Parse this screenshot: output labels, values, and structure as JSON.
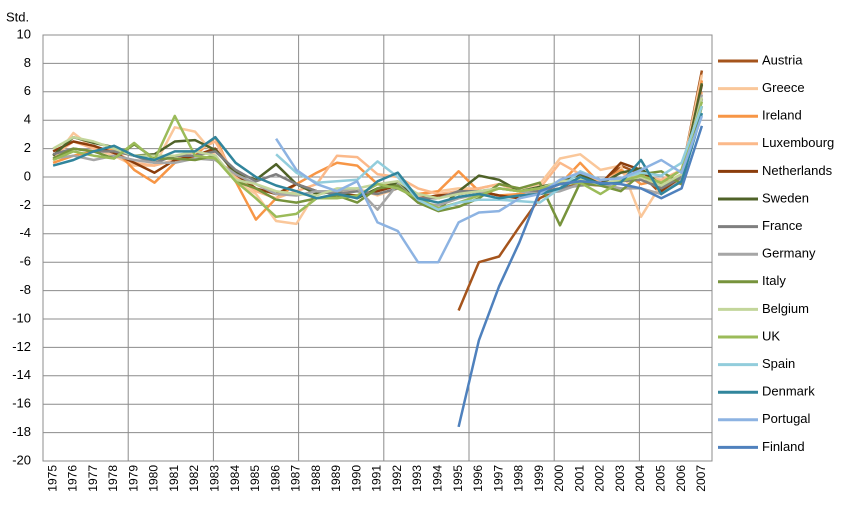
{
  "chart_data": {
    "type": "line",
    "y_label": "Std.",
    "categories": [
      "1975",
      "1976",
      "1977",
      "1978",
      "1979",
      "1980",
      "1981",
      "1982",
      "1983",
      "1984",
      "1985",
      "1986",
      "1987",
      "1988",
      "1989",
      "1990",
      "1991",
      "1992",
      "1993",
      "1994",
      "1995",
      "1996",
      "1997",
      "1998",
      "1999",
      "2000",
      "2001",
      "2002",
      "2003",
      "2004",
      "2005",
      "2006",
      "2007"
    ],
    "ylim": [
      -20,
      10
    ],
    "yticks": [
      -20,
      -18,
      -16,
      -14,
      -12,
      -10,
      -8,
      -6,
      -4,
      -2,
      0,
      2,
      4,
      6,
      8,
      10
    ],
    "grid": true,
    "legend": "right",
    "series": [
      {
        "name": "Austria",
        "color": "#a5541c",
        "values": [
          null,
          null,
          null,
          null,
          null,
          null,
          null,
          null,
          null,
          null,
          null,
          null,
          null,
          null,
          null,
          null,
          null,
          null,
          null,
          null,
          -9.4,
          -6,
          -5.6,
          -3.5,
          -1.5,
          -0.8,
          -0.5,
          -0.6,
          0.8,
          0.2,
          -1.2,
          0.2,
          7.5
        ]
      },
      {
        "name": "Greece",
        "color": "#fac79a",
        "values": [
          1.2,
          3.1,
          2.0,
          1.5,
          0.8,
          0.8,
          3.5,
          3.2,
          1.5,
          -0.3,
          -1.2,
          -3.1,
          -3.3,
          -1.0,
          -1.2,
          -0.8,
          -1.3,
          -0.8,
          -1.3,
          -1.0,
          -0.8,
          -0.8,
          -0.5,
          -0.8,
          -0.5,
          1.3,
          1.6,
          0.5,
          0.8,
          -2.8,
          -0.5,
          0.2,
          7.2
        ]
      },
      {
        "name": "Ireland",
        "color": "#f79646",
        "values": [
          1.0,
          1.5,
          1.8,
          2.0,
          0.5,
          -0.4,
          1.0,
          1.5,
          2.8,
          -0.3,
          -3.0,
          -1.5,
          -0.5,
          0.3,
          1.0,
          0.8,
          -0.5,
          -0.5,
          -1.2,
          -1.0,
          0.4,
          -1.0,
          -1.3,
          -1.2,
          -0.8,
          -0.5,
          1.0,
          -0.5,
          0.5,
          -0.5,
          -0.2,
          -0.5,
          6.8
        ]
      },
      {
        "name": "Luxembourg",
        "color": "#fbb98a",
        "values": [
          1.5,
          2.5,
          2.0,
          1.8,
          1.0,
          0.8,
          1.2,
          1.8,
          2.5,
          0,
          -1.0,
          -1.5,
          -1.0,
          -0.5,
          1.5,
          1.4,
          0.2,
          0,
          -0.8,
          -1.2,
          -1.0,
          -0.8,
          -0.5,
          -1.0,
          -0.8,
          1.0,
          0.2,
          -0.3,
          0.3,
          0,
          -0.2,
          0.5,
          6.0
        ]
      },
      {
        "name": "Netherlands",
        "color": "#8b3d0c",
        "values": [
          1.8,
          2.5,
          2.2,
          1.7,
          1.0,
          0.3,
          1.2,
          1.5,
          2.0,
          0.2,
          -0.8,
          -1.2,
          -0.5,
          -1.0,
          -1.2,
          -1.3,
          -1.0,
          -0.6,
          -1.5,
          -1.3,
          -1.2,
          -1.0,
          -1.3,
          -1.5,
          -1.0,
          -0.5,
          -0.3,
          -0.5,
          1.0,
          0.5,
          -1.0,
          0,
          6.5
        ]
      },
      {
        "name": "Sweden",
        "color": "#4f6228",
        "values": [
          1.5,
          2.8,
          2.4,
          2.1,
          1.5,
          1.6,
          2.5,
          2.6,
          1.9,
          0.3,
          -0.2,
          0.9,
          -0.5,
          -1.2,
          -1.0,
          -1.5,
          -0.8,
          -0.4,
          -1.5,
          -2.3,
          -1.0,
          0.1,
          -0.2,
          -1.0,
          -0.7,
          -0.4,
          0.2,
          -0.5,
          0.3,
          0.6,
          -0.6,
          0,
          6.6
        ]
      },
      {
        "name": "France",
        "color": "#7f7f7f",
        "values": [
          1.6,
          2.0,
          1.8,
          1.8,
          1.5,
          1.0,
          1.5,
          1.5,
          1.8,
          0.5,
          -0.3,
          0.2,
          -0.5,
          -1.0,
          -1.2,
          -1.0,
          -1.2,
          -0.8,
          -1.5,
          -1.5,
          -1.0,
          -1.0,
          -0.8,
          -1.0,
          -1.0,
          -0.8,
          -0.6,
          -0.5,
          -0.3,
          -0.2,
          -0.8,
          0,
          5.5
        ]
      },
      {
        "name": "Germany",
        "color": "#a6a6a6",
        "values": [
          1.3,
          1.5,
          1.2,
          1.5,
          1.2,
          1.0,
          1.0,
          1.3,
          1.2,
          0.2,
          -0.5,
          -1.2,
          -1.3,
          -1.0,
          -1.0,
          -0.8,
          -2.3,
          -0.5,
          -1.8,
          -2.0,
          -1.5,
          -1.2,
          -0.8,
          -1.0,
          -1.2,
          -1.0,
          -0.5,
          -0.5,
          -0.8,
          -0.8,
          -1.2,
          -0.2,
          5.8
        ]
      },
      {
        "name": "Italy",
        "color": "#77933c",
        "values": [
          1.3,
          2.0,
          1.8,
          1.3,
          2.3,
          1.3,
          1.3,
          1.2,
          1.5,
          -0.3,
          -0.8,
          -1.6,
          -1.8,
          -1.5,
          -1.3,
          -1.8,
          -0.8,
          -0.6,
          -1.8,
          -2.4,
          -2.1,
          -1.5,
          -0.5,
          -0.8,
          -0.4,
          -3.4,
          -0.4,
          -0.6,
          -1.0,
          0.2,
          0.4,
          -0.5,
          5.0
        ]
      },
      {
        "name": "Belgium",
        "color": "#c3d69b",
        "values": [
          2.0,
          2.8,
          2.5,
          2.0,
          1.5,
          1.5,
          1.5,
          1.8,
          1.5,
          -0.2,
          -0.5,
          -1.0,
          -1.2,
          -1.3,
          -0.8,
          -0.8,
          -0.5,
          -0.3,
          -1.2,
          -1.5,
          -1.2,
          -1.0,
          -0.8,
          -1.0,
          -0.8,
          -0.3,
          -0.2,
          -0.5,
          -0.2,
          0,
          -0.6,
          0.2,
          5.6
        ]
      },
      {
        "name": "UK",
        "color": "#9bbb59",
        "values": [
          1.2,
          1.8,
          1.5,
          1.3,
          2.4,
          1.2,
          4.3,
          1.5,
          1.3,
          -0.3,
          -1.5,
          -2.8,
          -2.6,
          -1.5,
          -1.5,
          -1.3,
          -0.5,
          -0.8,
          -1.5,
          -2.2,
          -1.8,
          -1.3,
          -0.8,
          -1.0,
          -0.8,
          -0.5,
          -0.4,
          -1.2,
          -0.3,
          0.1,
          -0.4,
          0.5,
          5.3
        ]
      },
      {
        "name": "Spain",
        "color": "#92cddc",
        "values": [
          null,
          null,
          null,
          null,
          null,
          null,
          null,
          null,
          null,
          null,
          null,
          1.6,
          0.3,
          -0.4,
          -0.3,
          -0.2,
          1.1,
          0,
          -1.6,
          -2.3,
          -1.8,
          -1.6,
          -1.6,
          -1.7,
          -1.8,
          -0.8,
          0.4,
          -0.2,
          -0.1,
          0.3,
          0.1,
          1.0,
          5.0
        ]
      },
      {
        "name": "Denmark",
        "color": "#31859c",
        "values": [
          0.8,
          1.2,
          1.8,
          2.2,
          1.5,
          1.2,
          1.8,
          1.8,
          2.8,
          1.0,
          0,
          -0.6,
          -1.0,
          -1.5,
          -1.2,
          -1.5,
          -0.3,
          0.3,
          -1.5,
          -1.8,
          -1.4,
          -1.2,
          -1.5,
          -1.3,
          -1.2,
          -0.8,
          0,
          -0.5,
          -0.4,
          1.2,
          -1.2,
          -0.3,
          4.5
        ]
      },
      {
        "name": "Portugal",
        "color": "#8db3e2",
        "values": [
          null,
          null,
          null,
          null,
          null,
          null,
          null,
          null,
          null,
          null,
          null,
          2.7,
          0.5,
          -0.5,
          -1,
          -0.3,
          -3.2,
          -3.8,
          -6,
          -6,
          -3.2,
          -2.5,
          -2.4,
          -1.5,
          -1.2,
          -0.2,
          0.3,
          -0.2,
          -0.1,
          0.5,
          1.2,
          0.3,
          4.3
        ]
      },
      {
        "name": "Finland",
        "color": "#4f81bd",
        "values": [
          null,
          null,
          null,
          null,
          null,
          null,
          null,
          null,
          null,
          null,
          null,
          null,
          null,
          null,
          null,
          null,
          null,
          null,
          null,
          null,
          -17.6,
          -11.5,
          -7.7,
          -4.6,
          -1,
          -0.5,
          -0.3,
          -0.4,
          -0.5,
          -0.8,
          -1.5,
          -0.8,
          3.6
        ]
      }
    ]
  }
}
